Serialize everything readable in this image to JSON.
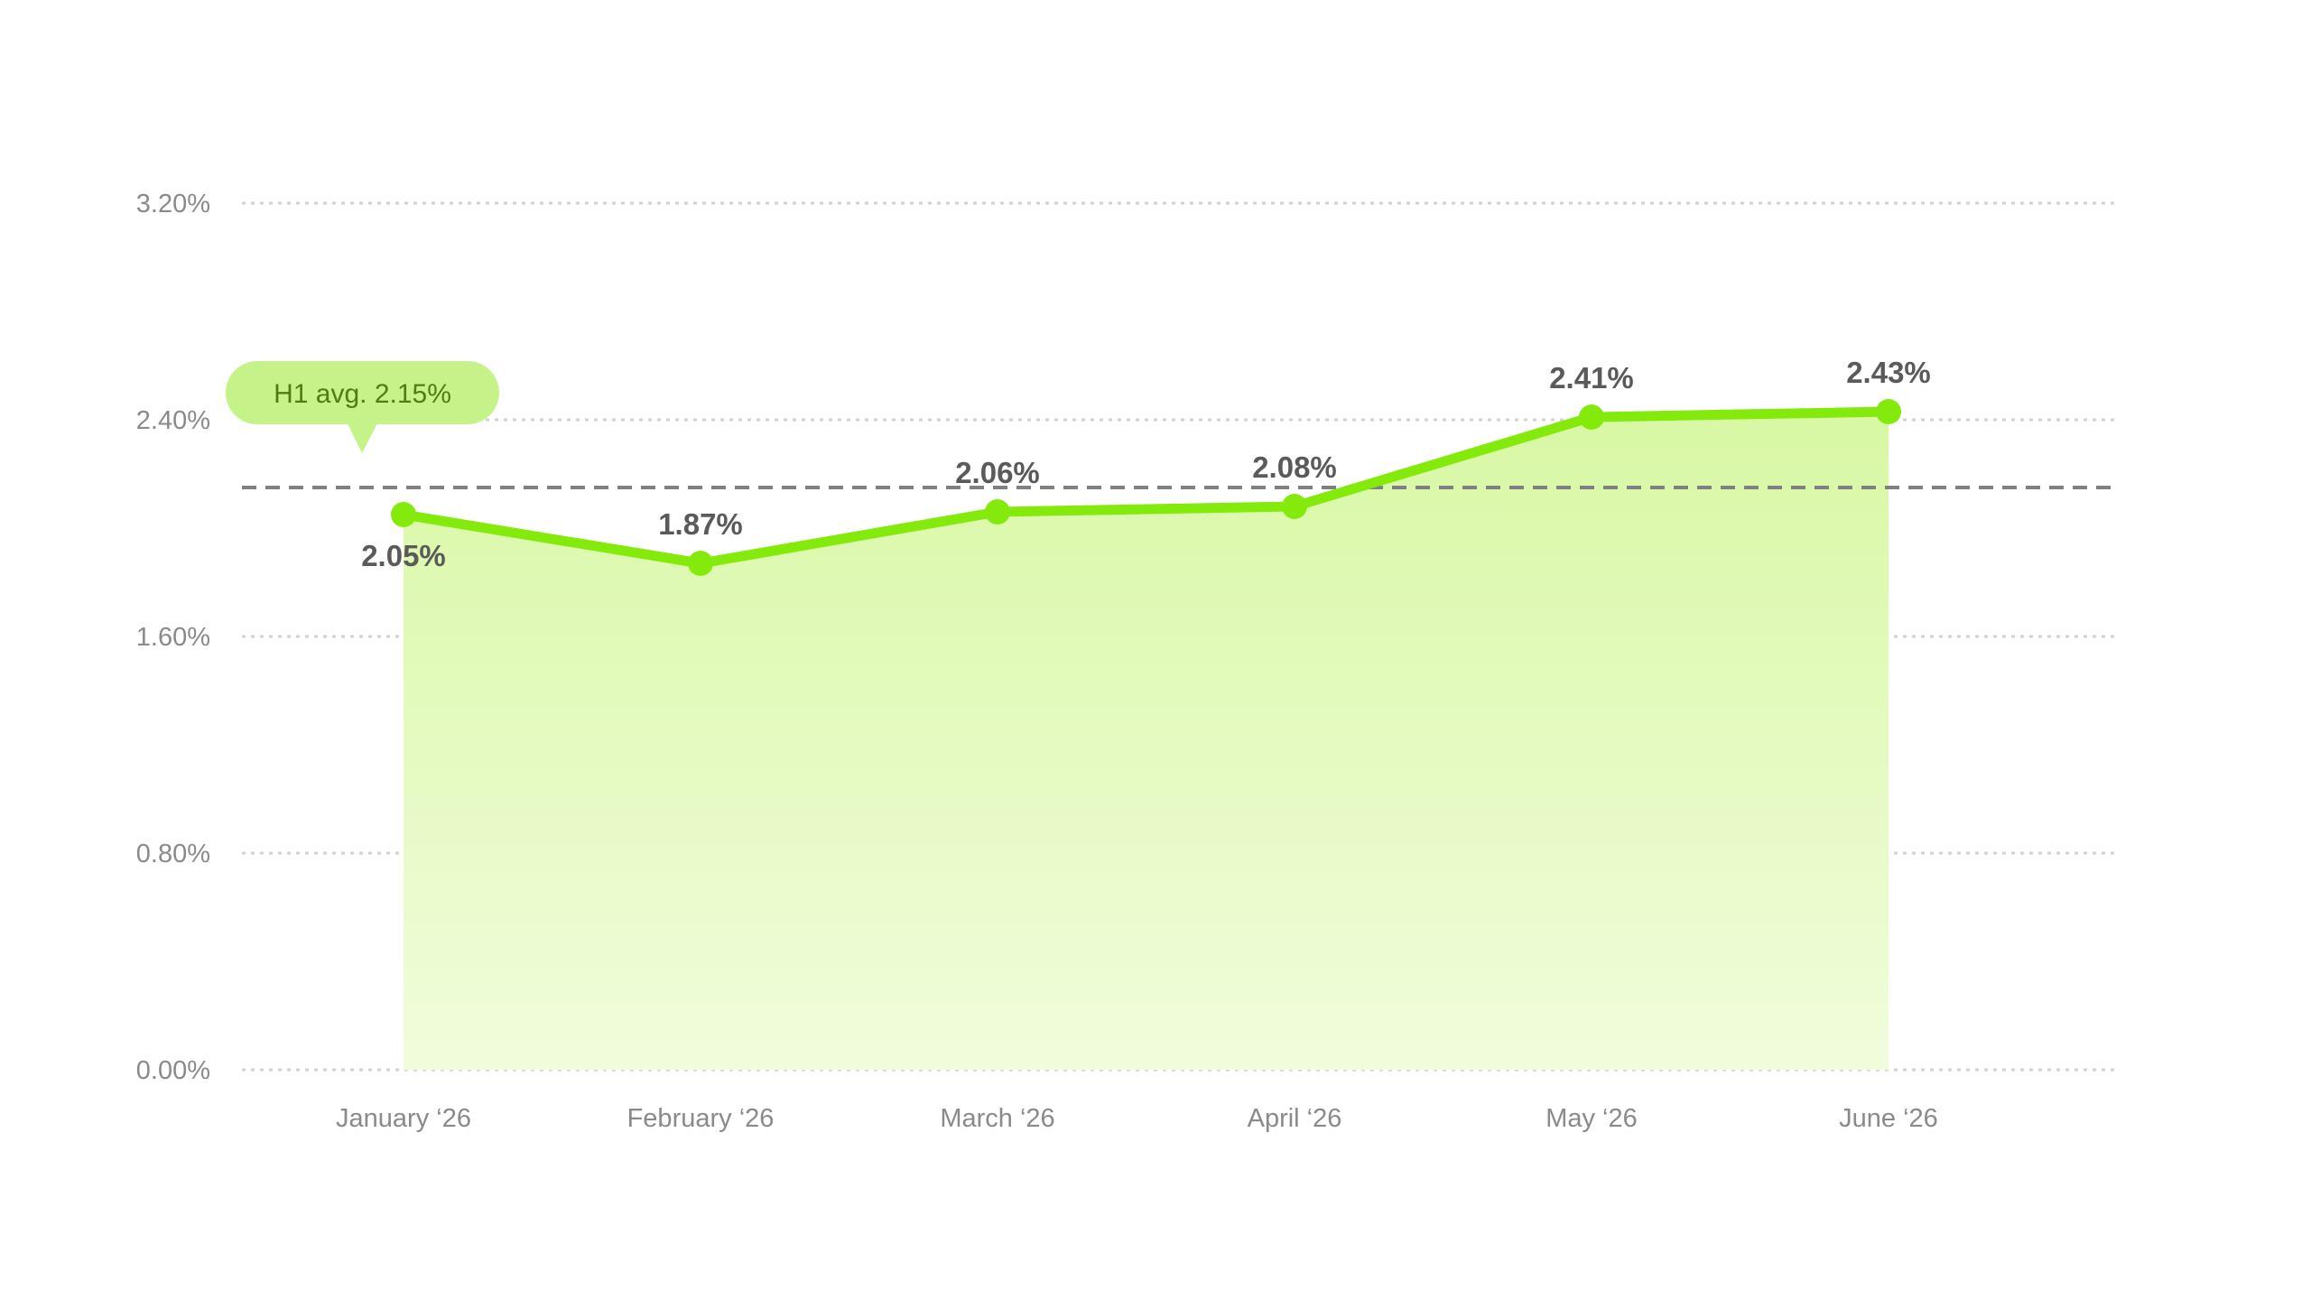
{
  "chart_data": {
    "type": "area",
    "title": "",
    "xlabel": "",
    "ylabel": "",
    "categories": [
      "January ‘26",
      "February ‘26",
      "March ‘26",
      "April ‘26",
      "May ‘26",
      "June ‘26"
    ],
    "series": [
      {
        "values": [
          2.05,
          1.87,
          2.06,
          2.08,
          2.41,
          2.43
        ],
        "data_labels": [
          "2.05%",
          "1.87%",
          "2.06%",
          "2.08%",
          "2.41%",
          "2.43%"
        ]
      }
    ],
    "y_ticks": [
      0,
      0.8,
      1.6,
      2.4,
      3.2
    ],
    "y_tick_labels": [
      "0.00%",
      "0.80%",
      "1.60%",
      "2.40%",
      "3.20%"
    ],
    "ylim": [
      0,
      3.2
    ],
    "grid": true,
    "legend": "none",
    "reference_line": {
      "value": 2.15,
      "label": "H1 avg. 2.15%"
    },
    "colors": {
      "line": "#84ea0c",
      "area_top": "#d8f8a4",
      "area_bottom": "#f1fcdc",
      "avg_line": "#808080",
      "avg_badge": "#c6f28a",
      "grid": "#d2d2d2"
    }
  }
}
